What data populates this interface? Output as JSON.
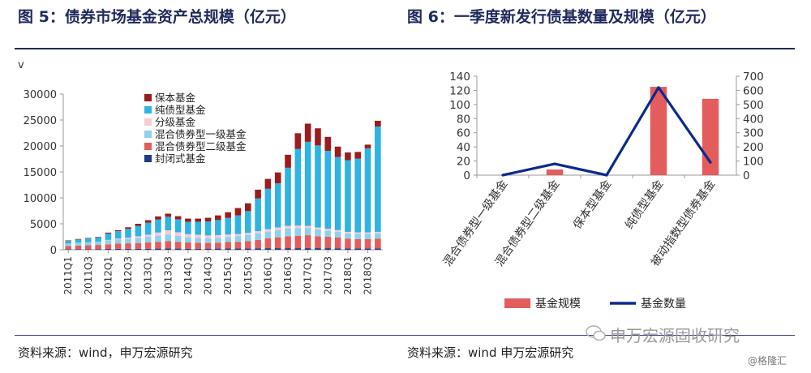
{
  "titles": {
    "fig5": "图 5：债券市场基金资产总规模（亿元）",
    "fig6": "图 6：一季度新发行债基数量及规模（亿元）"
  },
  "sources": {
    "fig5": "资料来源：wind，申万宏源研究",
    "fig6": "资料来源：wind  申万宏源研究"
  },
  "watermark": {
    "brand": "申万宏源固收研究",
    "site": "@格隆汇"
  },
  "colors": {
    "closed": "#1f3a8a",
    "hybrid2": "#e35d5d",
    "hybrid1": "#8fd0ee",
    "graded": "#f6cbd3",
    "pure": "#2fb3e3",
    "guaranteed": "#9b1c1c",
    "bar6": "#e35d5d",
    "line6": "#0b2a8c",
    "axis": "#9a9a9a"
  },
  "chart_data": [
    {
      "type": "bar",
      "stacked": true,
      "ylabel": "v",
      "ylim": [
        0,
        30000
      ],
      "yticks": [
        0,
        5000,
        10000,
        15000,
        20000,
        25000,
        30000
      ],
      "x": [
        "2011Q1",
        "2011Q2",
        "2011Q3",
        "2011Q4",
        "2012Q1",
        "2012Q2",
        "2012Q3",
        "2012Q4",
        "2013Q1",
        "2013Q2",
        "2013Q3",
        "2013Q4",
        "2014Q1",
        "2014Q2",
        "2014Q3",
        "2014Q4",
        "2015Q1",
        "2015Q2",
        "2015Q3",
        "2015Q4",
        "2016Q1",
        "2016Q2",
        "2016Q3",
        "2016Q4",
        "2017Q1",
        "2017Q2",
        "2017Q3",
        "2017Q4",
        "2018Q1",
        "2018Q2",
        "2018Q3",
        "2018Q4"
      ],
      "xtick_labels": [
        "2011Q1",
        "2011Q3",
        "2012Q1",
        "2012Q3",
        "2013Q1",
        "2013Q3",
        "2014Q1",
        "2014Q3",
        "2015Q1",
        "2015Q3",
        "2016Q1",
        "2016Q3",
        "2017Q1",
        "2017Q3",
        "2018Q1",
        "2018Q3"
      ],
      "legend_position": "top-left",
      "series": [
        {
          "name": "封闭式基金",
          "color_key": "closed",
          "values": [
            100,
            120,
            120,
            130,
            150,
            170,
            180,
            200,
            200,
            220,
            250,
            220,
            200,
            200,
            210,
            220,
            230,
            230,
            250,
            280,
            300,
            300,
            300,
            300,
            300,
            300,
            300,
            280,
            250,
            250,
            250,
            250
          ]
        },
        {
          "name": "混合债券型二级基金",
          "color_key": "hybrid2",
          "values": [
            600,
            700,
            750,
            800,
            900,
            1000,
            1050,
            1100,
            1200,
            1300,
            1400,
            1300,
            1200,
            1150,
            1100,
            1150,
            1250,
            1300,
            1400,
            1600,
            1900,
            2100,
            2300,
            2400,
            2500,
            2300,
            2200,
            2100,
            1900,
            1800,
            1800,
            1900
          ]
        },
        {
          "name": "混合债券型一级基金",
          "color_key": "hybrid1",
          "values": [
            500,
            550,
            600,
            650,
            750,
            850,
            900,
            1000,
            1100,
            1200,
            1300,
            1150,
            1000,
            950,
            900,
            950,
            1000,
            1100,
            1200,
            1300,
            1300,
            1400,
            1500,
            1500,
            1400,
            1300,
            1200,
            1100,
            1000,
            1000,
            1000,
            1000
          ]
        },
        {
          "name": "分级基金",
          "color_key": "graded",
          "values": [
            0,
            0,
            0,
            0,
            100,
            150,
            200,
            300,
            400,
            600,
            800,
            700,
            600,
            600,
            550,
            500,
            450,
            400,
            400,
            400,
            450,
            500,
            500,
            450,
            400,
            400,
            350,
            300,
            300,
            300,
            300,
            300
          ]
        },
        {
          "name": "纯债型基金",
          "color_key": "pure",
          "values": [
            500,
            600,
            700,
            800,
            1200,
            1400,
            1700,
            2000,
            2300,
            2500,
            2600,
            2500,
            2400,
            2500,
            2700,
            2900,
            3200,
            3600,
            4200,
            6300,
            7800,
            8500,
            11200,
            14800,
            16200,
            15800,
            15000,
            14100,
            13800,
            14200,
            16200,
            20300
          ]
        },
        {
          "name": "保本基金",
          "color_key": "guaranteed",
          "values": [
            100,
            100,
            100,
            100,
            200,
            200,
            300,
            400,
            500,
            600,
            600,
            600,
            600,
            600,
            700,
            900,
            1100,
            1400,
            1500,
            1700,
            1900,
            2100,
            2500,
            3000,
            3500,
            3300,
            2700,
            2000,
            1500,
            1300,
            700,
            1100
          ]
        }
      ]
    },
    {
      "type": "bar",
      "combo": "bar+line",
      "categories": [
        "混合债券型一级基金",
        "混合债券型二级基金",
        "保本型基金",
        "纯债型基金",
        "被动指数型债券基金"
      ],
      "ylim_left": [
        0,
        140
      ],
      "yticks_left": [
        0,
        20,
        40,
        60,
        80,
        100,
        120,
        140
      ],
      "ylim_right": [
        0,
        700
      ],
      "yticks_right": [
        0,
        100,
        200,
        300,
        400,
        500,
        600,
        700
      ],
      "legend_position": "bottom",
      "series": [
        {
          "name": "基金规模",
          "kind": "bar",
          "axis": "left",
          "color_key": "bar6",
          "values": [
            0,
            8,
            0,
            125,
            108
          ]
        },
        {
          "name": "基金数量",
          "kind": "line",
          "axis": "right",
          "color_key": "line6",
          "values": [
            0,
            80,
            0,
            620,
            90
          ]
        }
      ]
    }
  ]
}
